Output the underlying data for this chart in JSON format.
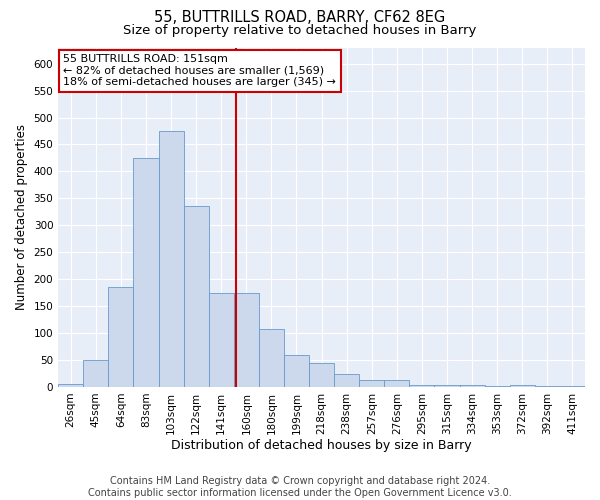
{
  "title": "55, BUTTRILLS ROAD, BARRY, CF62 8EG",
  "subtitle": "Size of property relative to detached houses in Barry",
  "xlabel": "Distribution of detached houses by size in Barry",
  "ylabel": "Number of detached properties",
  "categories": [
    "26sqm",
    "45sqm",
    "64sqm",
    "83sqm",
    "103sqm",
    "122sqm",
    "141sqm",
    "160sqm",
    "180sqm",
    "199sqm",
    "218sqm",
    "238sqm",
    "257sqm",
    "276sqm",
    "295sqm",
    "315sqm",
    "334sqm",
    "353sqm",
    "372sqm",
    "392sqm",
    "411sqm"
  ],
  "values": [
    5,
    50,
    185,
    425,
    475,
    335,
    175,
    175,
    107,
    60,
    45,
    24,
    12,
    12,
    4,
    3,
    3,
    1,
    3,
    2,
    2
  ],
  "bar_color": "#ccd9ec",
  "bar_edge_color": "#6699cc",
  "annotation_text": "55 BUTTRILLS ROAD: 151sqm\n← 82% of detached houses are smaller (1,569)\n18% of semi-detached houses are larger (345) →",
  "annotation_box_facecolor": "#ffffff",
  "annotation_box_edgecolor": "#cc0000",
  "vline_color": "#cc0000",
  "vline_index": 6.57,
  "ylim": [
    0,
    630
  ],
  "yticks": [
    0,
    50,
    100,
    150,
    200,
    250,
    300,
    350,
    400,
    450,
    500,
    550,
    600
  ],
  "bg_color": "#ffffff",
  "plot_bg_color": "#e8eef8",
  "grid_color": "#ffffff",
  "footer": "Contains HM Land Registry data © Crown copyright and database right 2024.\nContains public sector information licensed under the Open Government Licence v3.0.",
  "title_fontsize": 10.5,
  "subtitle_fontsize": 9.5,
  "xlabel_fontsize": 9,
  "ylabel_fontsize": 8.5,
  "tick_fontsize": 7.5,
  "footer_fontsize": 7,
  "annotation_fontsize": 8
}
